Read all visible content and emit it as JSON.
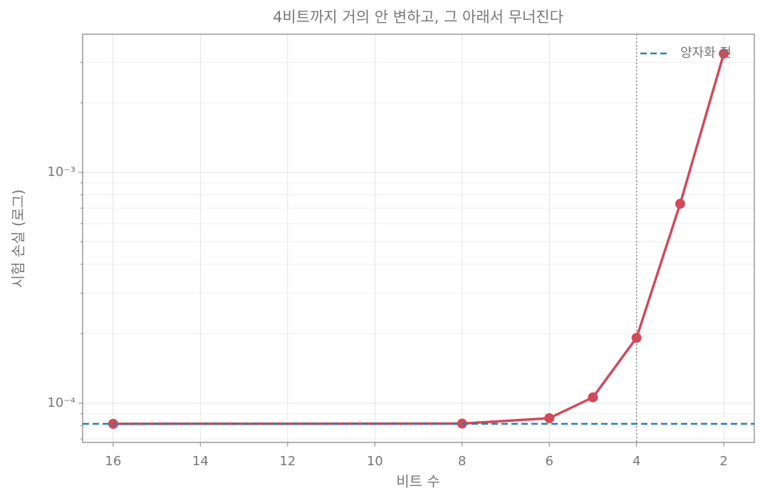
{
  "chart_data": {
    "type": "line",
    "title": "4비트까지 거의 안 변하고, 그 아래서 무너진다",
    "xlabel": "비트 수",
    "ylabel": "시험 손실 (로그)",
    "x": [
      16,
      8,
      6,
      5,
      4,
      3,
      2
    ],
    "series": [
      {
        "color": "#d1495b",
        "values": [
          8.14e-05,
          8.16e-05,
          8.61e-05,
          0.000106,
          0.000192,
          0.000731,
          0.00327
        ]
      }
    ],
    "xlim": [
      16.7,
      1.3
    ],
    "xticks": [
      16,
      14,
      12,
      10,
      8,
      6,
      4,
      2
    ],
    "ylim": [
      6.76e-05,
      0.00397
    ],
    "ylog": true,
    "yticks": [
      {
        "value": 0.0001,
        "label": "10⁻⁴"
      },
      {
        "value": 0.001,
        "label": "10⁻³"
      }
    ],
    "yminorticks": [
      7e-05,
      8e-05,
      9e-05,
      0.0002,
      0.0003,
      0.0004,
      0.0005,
      0.0006,
      0.0007,
      0.0008,
      0.0009,
      0.002,
      0.003
    ],
    "grid": true,
    "hlines": [
      {
        "name": "양자화 전",
        "value": 8.14e-05,
        "color": "#2e7fab"
      }
    ],
    "vlines": [
      {
        "value": 4,
        "color": "#888888"
      }
    ],
    "legend": "upper right"
  }
}
